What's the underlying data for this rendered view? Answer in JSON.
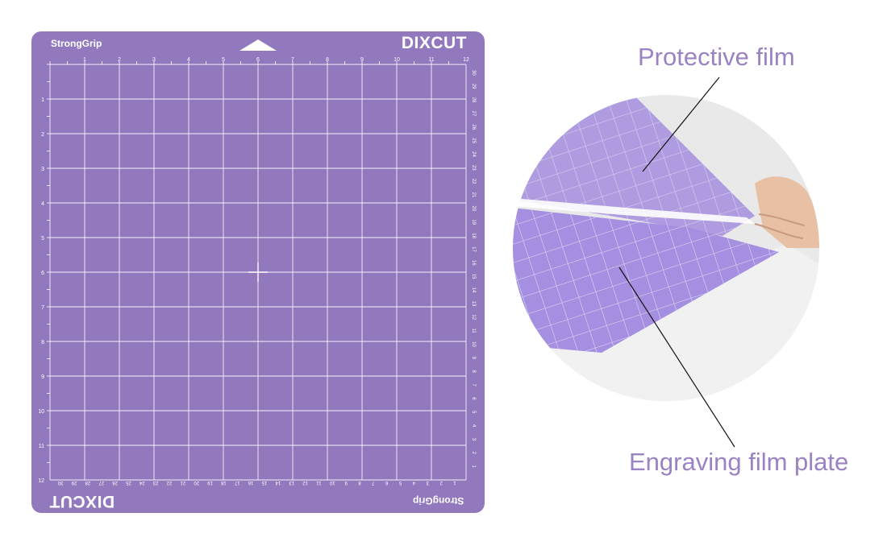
{
  "mat": {
    "grip_label": "StrongGrip",
    "brand": "DIXCUT",
    "colors": {
      "mat": "#9278bd",
      "grid": "#ffffff"
    },
    "top_inch_labels": [
      "1",
      "2",
      "3",
      "4",
      "5",
      "6",
      "7",
      "8",
      "9",
      "10",
      "11",
      "12"
    ],
    "left_inch_labels": [
      "1",
      "2",
      "3",
      "4",
      "5",
      "6",
      "7",
      "8",
      "9",
      "10",
      "11",
      "12"
    ],
    "right_cm_labels": [
      "1",
      "2",
      "3",
      "4",
      "5",
      "6",
      "7",
      "8",
      "9",
      "10",
      "11",
      "12",
      "13",
      "14",
      "15",
      "16",
      "17",
      "18",
      "19",
      "20",
      "21",
      "22",
      "23",
      "24",
      "25",
      "26",
      "27",
      "28",
      "29",
      "30"
    ],
    "bottom_cm_labels": [
      "1",
      "2",
      "3",
      "4",
      "5",
      "6",
      "7",
      "8",
      "9",
      "10",
      "11",
      "12",
      "13",
      "14",
      "15",
      "16",
      "17",
      "18",
      "19",
      "20",
      "21",
      "22",
      "23",
      "24",
      "25",
      "26",
      "27",
      "28",
      "29",
      "30"
    ]
  },
  "callouts": {
    "protective": "Protective film",
    "engraving": "Engraving film plate"
  },
  "colors": {
    "callout_text": "#9a82c3",
    "film_plate": "#a58fe0"
  }
}
